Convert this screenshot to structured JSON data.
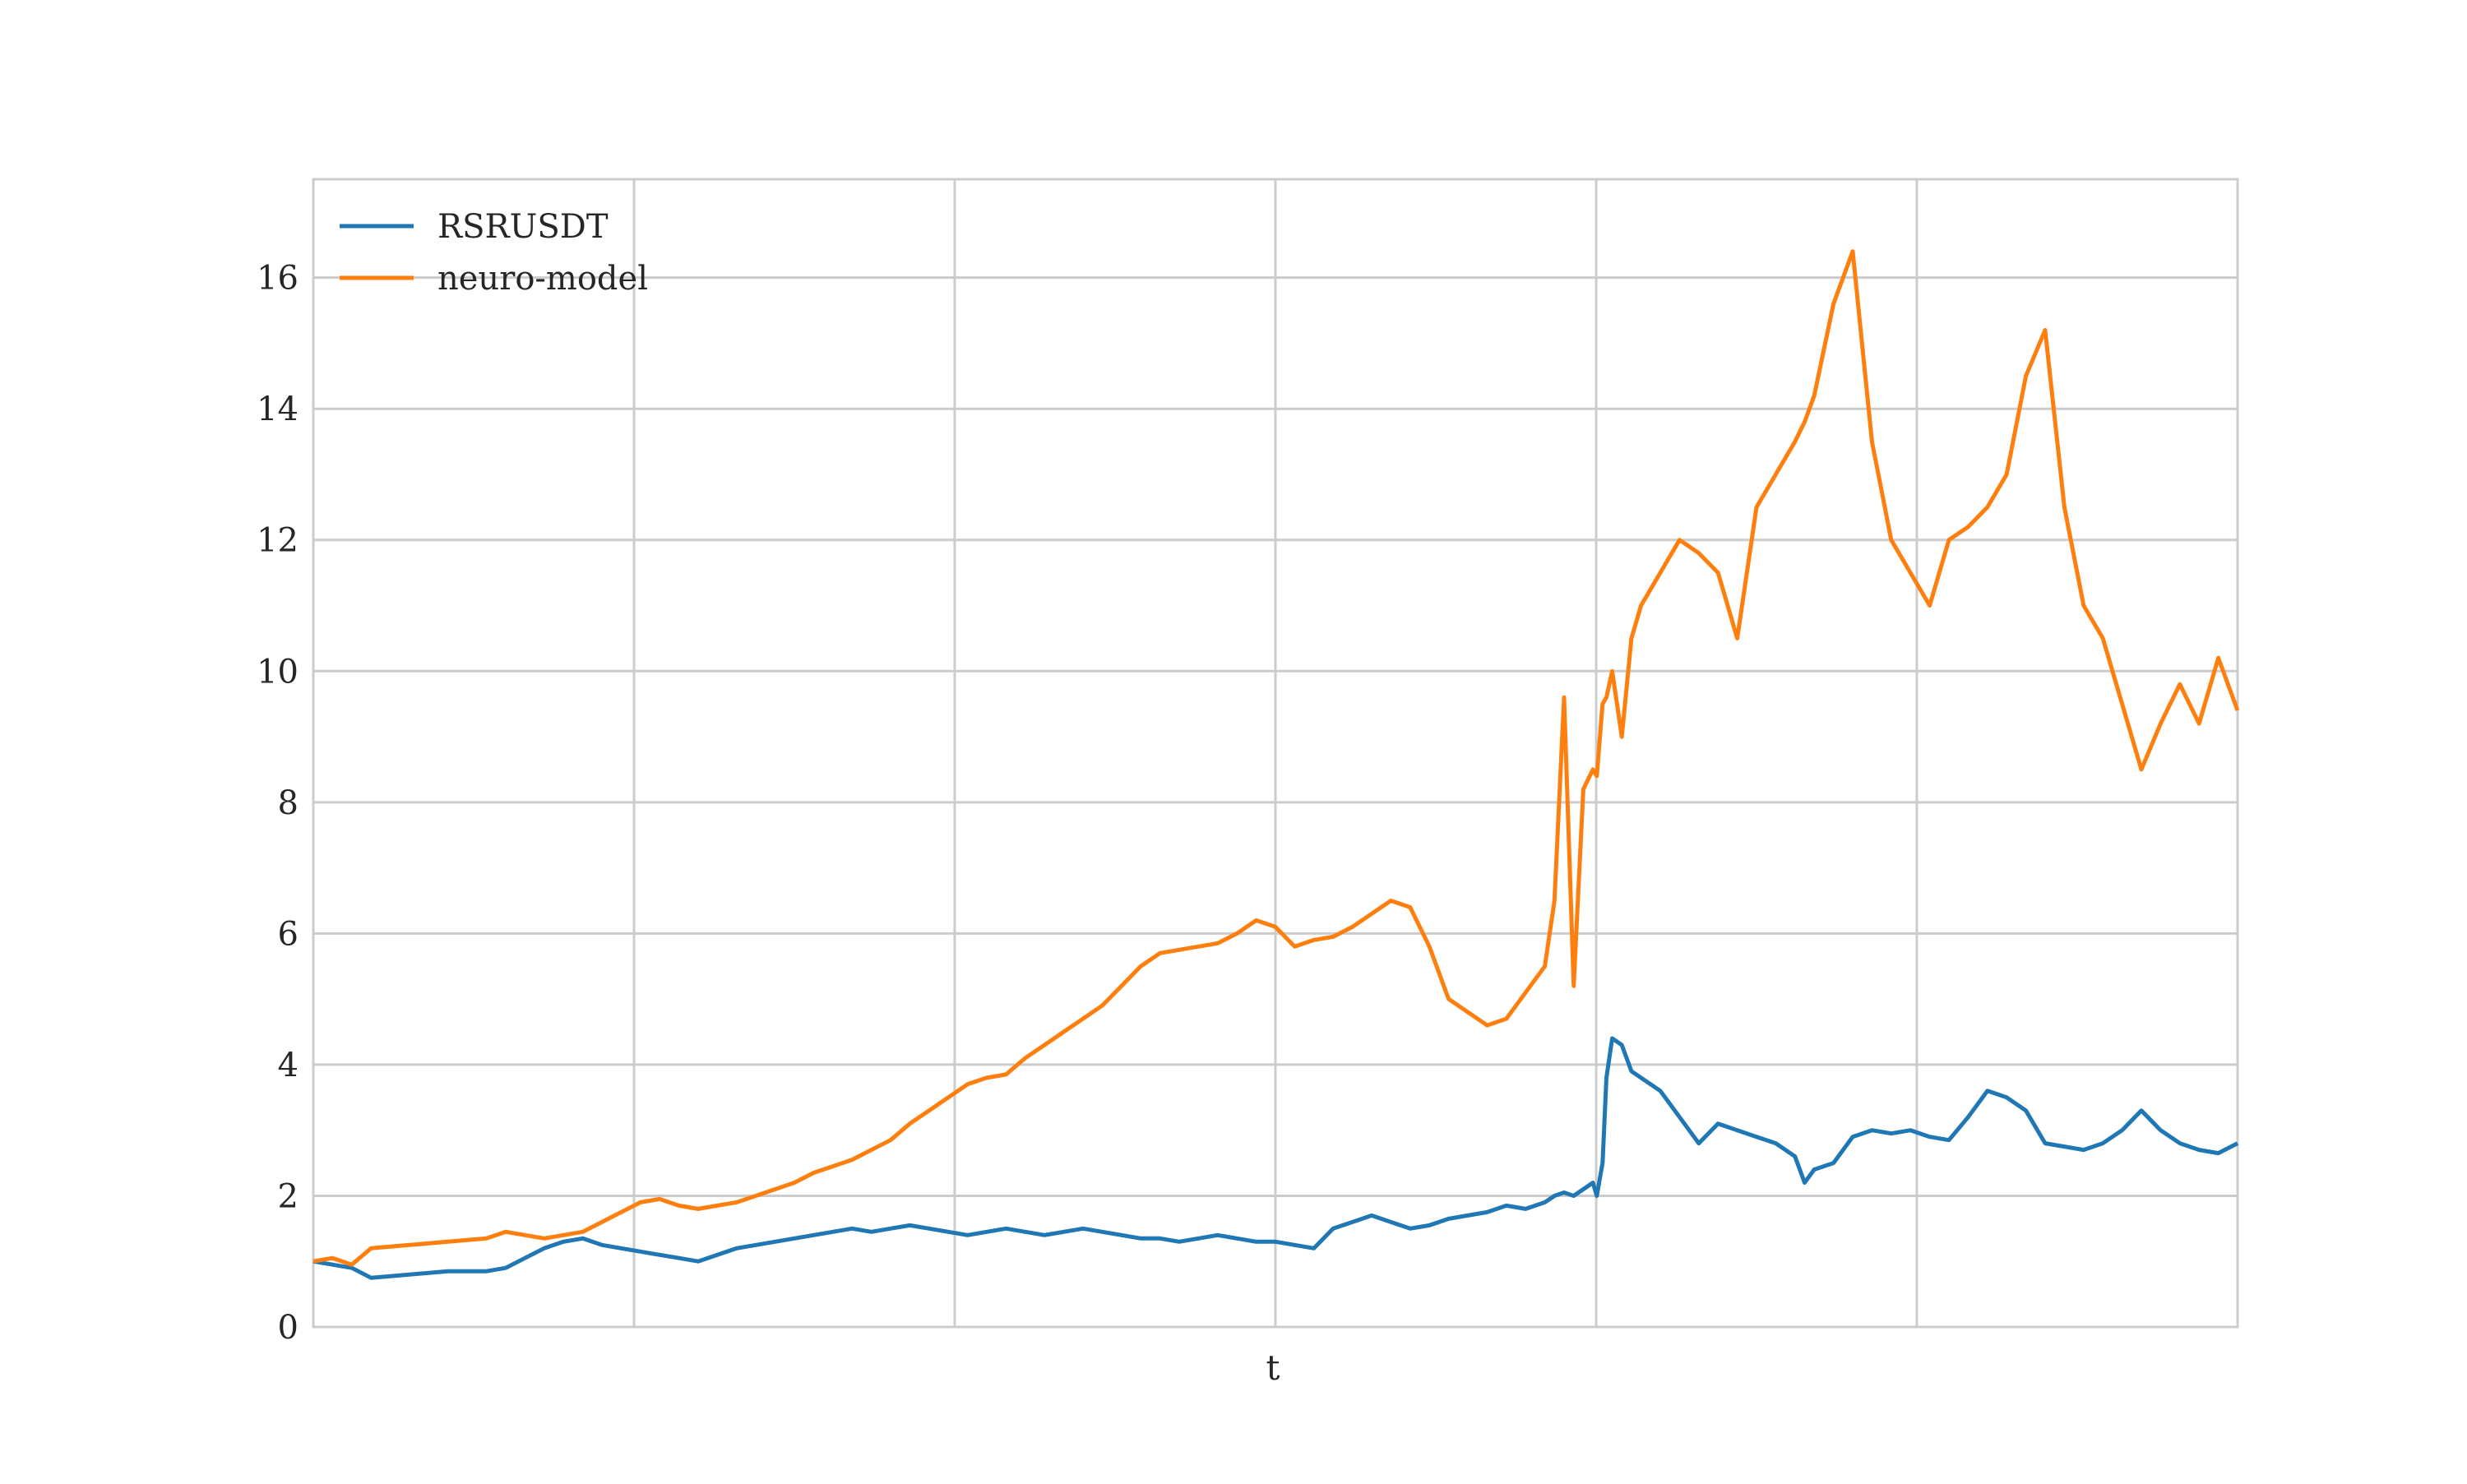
{
  "chart_data": {
    "type": "line",
    "title": "",
    "xlabel": "t",
    "ylabel": "",
    "ylim": [
      0,
      17.5
    ],
    "yticks": [
      0,
      2,
      4,
      6,
      8,
      10,
      12,
      14,
      16
    ],
    "xlim": [
      0,
      1.0
    ],
    "x_gridlines": [
      0.1667,
      0.3333,
      0.5,
      0.6667,
      0.8333,
      1.0
    ],
    "grid": true,
    "legend_position": "upper-left",
    "series": [
      {
        "name": "RSRUSDT",
        "color": "#1f77b4",
        "x": [
          0,
          0.01,
          0.02,
          0.03,
          0.05,
          0.07,
          0.09,
          0.1,
          0.11,
          0.12,
          0.13,
          0.14,
          0.15,
          0.16,
          0.17,
          0.18,
          0.19,
          0.2,
          0.21,
          0.22,
          0.23,
          0.24,
          0.25,
          0.26,
          0.27,
          0.28,
          0.29,
          0.3,
          0.31,
          0.32,
          0.33,
          0.34,
          0.35,
          0.36,
          0.37,
          0.38,
          0.39,
          0.4,
          0.41,
          0.42,
          0.43,
          0.44,
          0.45,
          0.46,
          0.47,
          0.48,
          0.49,
          0.5,
          0.51,
          0.52,
          0.53,
          0.54,
          0.55,
          0.56,
          0.57,
          0.58,
          0.59,
          0.6,
          0.61,
          0.62,
          0.63,
          0.64,
          0.645,
          0.65,
          0.655,
          0.66,
          0.665,
          0.667,
          0.67,
          0.672,
          0.675,
          0.68,
          0.685,
          0.69,
          0.7,
          0.71,
          0.72,
          0.73,
          0.74,
          0.75,
          0.76,
          0.77,
          0.775,
          0.78,
          0.79,
          0.8,
          0.81,
          0.82,
          0.83,
          0.84,
          0.85,
          0.86,
          0.87,
          0.88,
          0.89,
          0.9,
          0.91,
          0.92,
          0.93,
          0.94,
          0.95,
          0.96,
          0.97,
          0.98,
          0.99,
          1.0
        ],
        "y": [
          1.0,
          0.95,
          0.9,
          0.75,
          0.8,
          0.85,
          0.85,
          0.9,
          1.05,
          1.2,
          1.3,
          1.35,
          1.25,
          1.2,
          1.15,
          1.1,
          1.05,
          1.0,
          1.1,
          1.2,
          1.25,
          1.3,
          1.35,
          1.4,
          1.45,
          1.5,
          1.45,
          1.5,
          1.55,
          1.5,
          1.45,
          1.4,
          1.45,
          1.5,
          1.45,
          1.4,
          1.45,
          1.5,
          1.45,
          1.4,
          1.35,
          1.35,
          1.3,
          1.35,
          1.4,
          1.35,
          1.3,
          1.3,
          1.25,
          1.2,
          1.5,
          1.6,
          1.7,
          1.6,
          1.5,
          1.55,
          1.65,
          1.7,
          1.75,
          1.85,
          1.8,
          1.9,
          2.0,
          2.05,
          2.0,
          2.1,
          2.2,
          2.0,
          2.5,
          3.8,
          4.4,
          4.3,
          3.9,
          3.8,
          3.6,
          3.2,
          2.8,
          3.1,
          3.0,
          2.9,
          2.8,
          2.6,
          2.2,
          2.4,
          2.5,
          2.9,
          3.0,
          2.95,
          3.0,
          2.9,
          2.85,
          3.2,
          3.6,
          3.5,
          3.3,
          2.8,
          2.75,
          2.7,
          2.8,
          3.0,
          3.3,
          3.0,
          2.8,
          2.7,
          2.65,
          2.8
        ],
        "annotation": ""
      },
      {
        "name": "neuro-model",
        "color": "#ff7f0e",
        "x": [
          0,
          0.01,
          0.02,
          0.03,
          0.05,
          0.07,
          0.09,
          0.1,
          0.11,
          0.12,
          0.13,
          0.14,
          0.15,
          0.16,
          0.17,
          0.18,
          0.19,
          0.2,
          0.21,
          0.22,
          0.23,
          0.24,
          0.25,
          0.26,
          0.27,
          0.28,
          0.29,
          0.3,
          0.31,
          0.32,
          0.33,
          0.34,
          0.35,
          0.36,
          0.37,
          0.38,
          0.39,
          0.4,
          0.41,
          0.42,
          0.43,
          0.44,
          0.45,
          0.46,
          0.47,
          0.48,
          0.49,
          0.5,
          0.51,
          0.52,
          0.53,
          0.54,
          0.55,
          0.56,
          0.57,
          0.58,
          0.59,
          0.6,
          0.61,
          0.62,
          0.63,
          0.64,
          0.645,
          0.65,
          0.655,
          0.66,
          0.665,
          0.667,
          0.67,
          0.672,
          0.675,
          0.68,
          0.685,
          0.69,
          0.7,
          0.71,
          0.72,
          0.73,
          0.74,
          0.75,
          0.76,
          0.77,
          0.775,
          0.78,
          0.79,
          0.8,
          0.81,
          0.82,
          0.83,
          0.84,
          0.85,
          0.86,
          0.87,
          0.88,
          0.89,
          0.9,
          0.91,
          0.92,
          0.93,
          0.94,
          0.95,
          0.96,
          0.97,
          0.98,
          0.99,
          1.0
        ],
        "y": [
          1.0,
          1.05,
          0.95,
          1.2,
          1.25,
          1.3,
          1.35,
          1.45,
          1.4,
          1.35,
          1.4,
          1.45,
          1.6,
          1.75,
          1.9,
          1.95,
          1.85,
          1.8,
          1.85,
          1.9,
          2.0,
          2.1,
          2.2,
          2.35,
          2.45,
          2.55,
          2.7,
          2.85,
          3.1,
          3.3,
          3.5,
          3.7,
          3.8,
          3.85,
          4.1,
          4.3,
          4.5,
          4.7,
          4.9,
          5.2,
          5.5,
          5.7,
          5.75,
          5.8,
          5.85,
          6.0,
          6.2,
          6.1,
          5.8,
          5.9,
          5.95,
          6.1,
          6.3,
          6.5,
          6.4,
          5.8,
          5.0,
          4.8,
          4.6,
          4.7,
          5.1,
          5.5,
          6.5,
          9.6,
          5.2,
          8.2,
          8.5,
          8.4,
          9.5,
          9.6,
          10.0,
          9.0,
          10.5,
          11.0,
          11.5,
          12.0,
          11.8,
          11.5,
          10.5,
          12.5,
          13.0,
          13.5,
          13.8,
          14.2,
          15.6,
          16.4,
          13.5,
          12.0,
          11.5,
          11.0,
          12.0,
          12.2,
          12.5,
          13.0,
          14.5,
          15.2,
          12.5,
          11.0,
          10.5,
          9.5,
          8.5,
          9.2,
          9.8,
          9.2,
          10.2,
          9.4
        ],
        "annotation": ""
      }
    ]
  }
}
